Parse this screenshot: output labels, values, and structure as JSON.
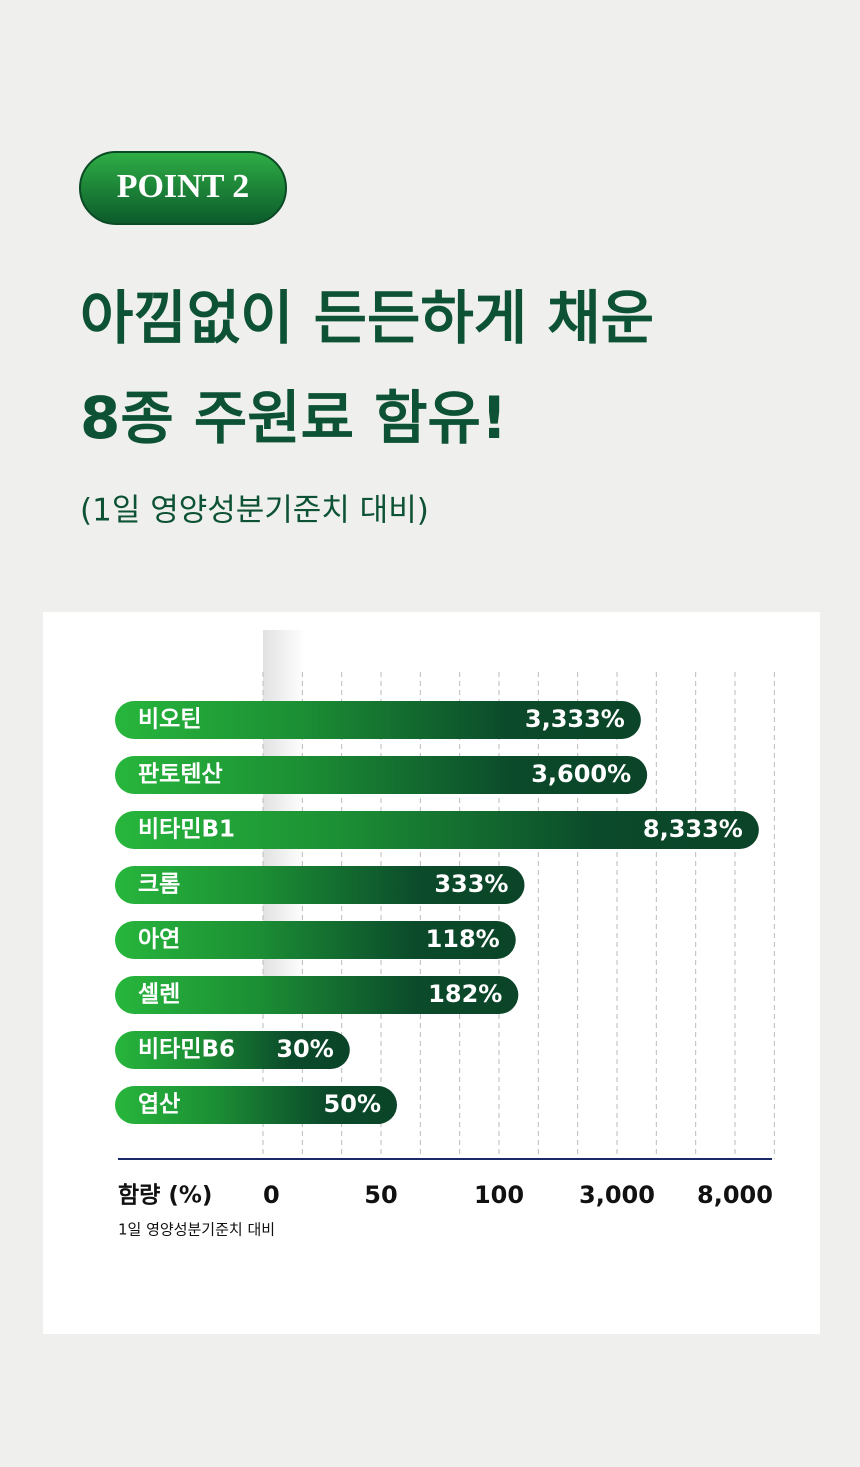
{
  "header": {
    "badge": "POINT 2",
    "title_lines": [
      "아낌없이 든든하게 채운",
      "8종 주원료 함유!"
    ],
    "subtitle": "(1일 영양성분기준치 대비)"
  },
  "chart_data": {
    "type": "bar",
    "orientation": "horizontal",
    "x_scale": "piecewise",
    "x_label": "함량 (%)",
    "x_sublabel": "1일 영양성분기준치 대비",
    "categories": [
      "비오틴",
      "판토텐산",
      "비타민B1",
      "크롬",
      "아연",
      "셀렌",
      "비타민B6",
      "엽산"
    ],
    "values": [
      3333,
      3600,
      8333,
      333,
      118,
      182,
      30,
      50
    ],
    "value_labels": [
      "3,333%",
      "3,600%",
      "8,333%",
      "333%",
      "118%",
      "182%",
      "30%",
      "50%"
    ],
    "color": "#0b4a2b",
    "xlim": [
      0,
      8000
    ],
    "xticks": [
      0,
      50,
      100,
      {
        "value": 3000,
        "label": "3,000"
      },
      {
        "value": 8000,
        "label": "8,000"
      }
    ],
    "grid": true
  }
}
